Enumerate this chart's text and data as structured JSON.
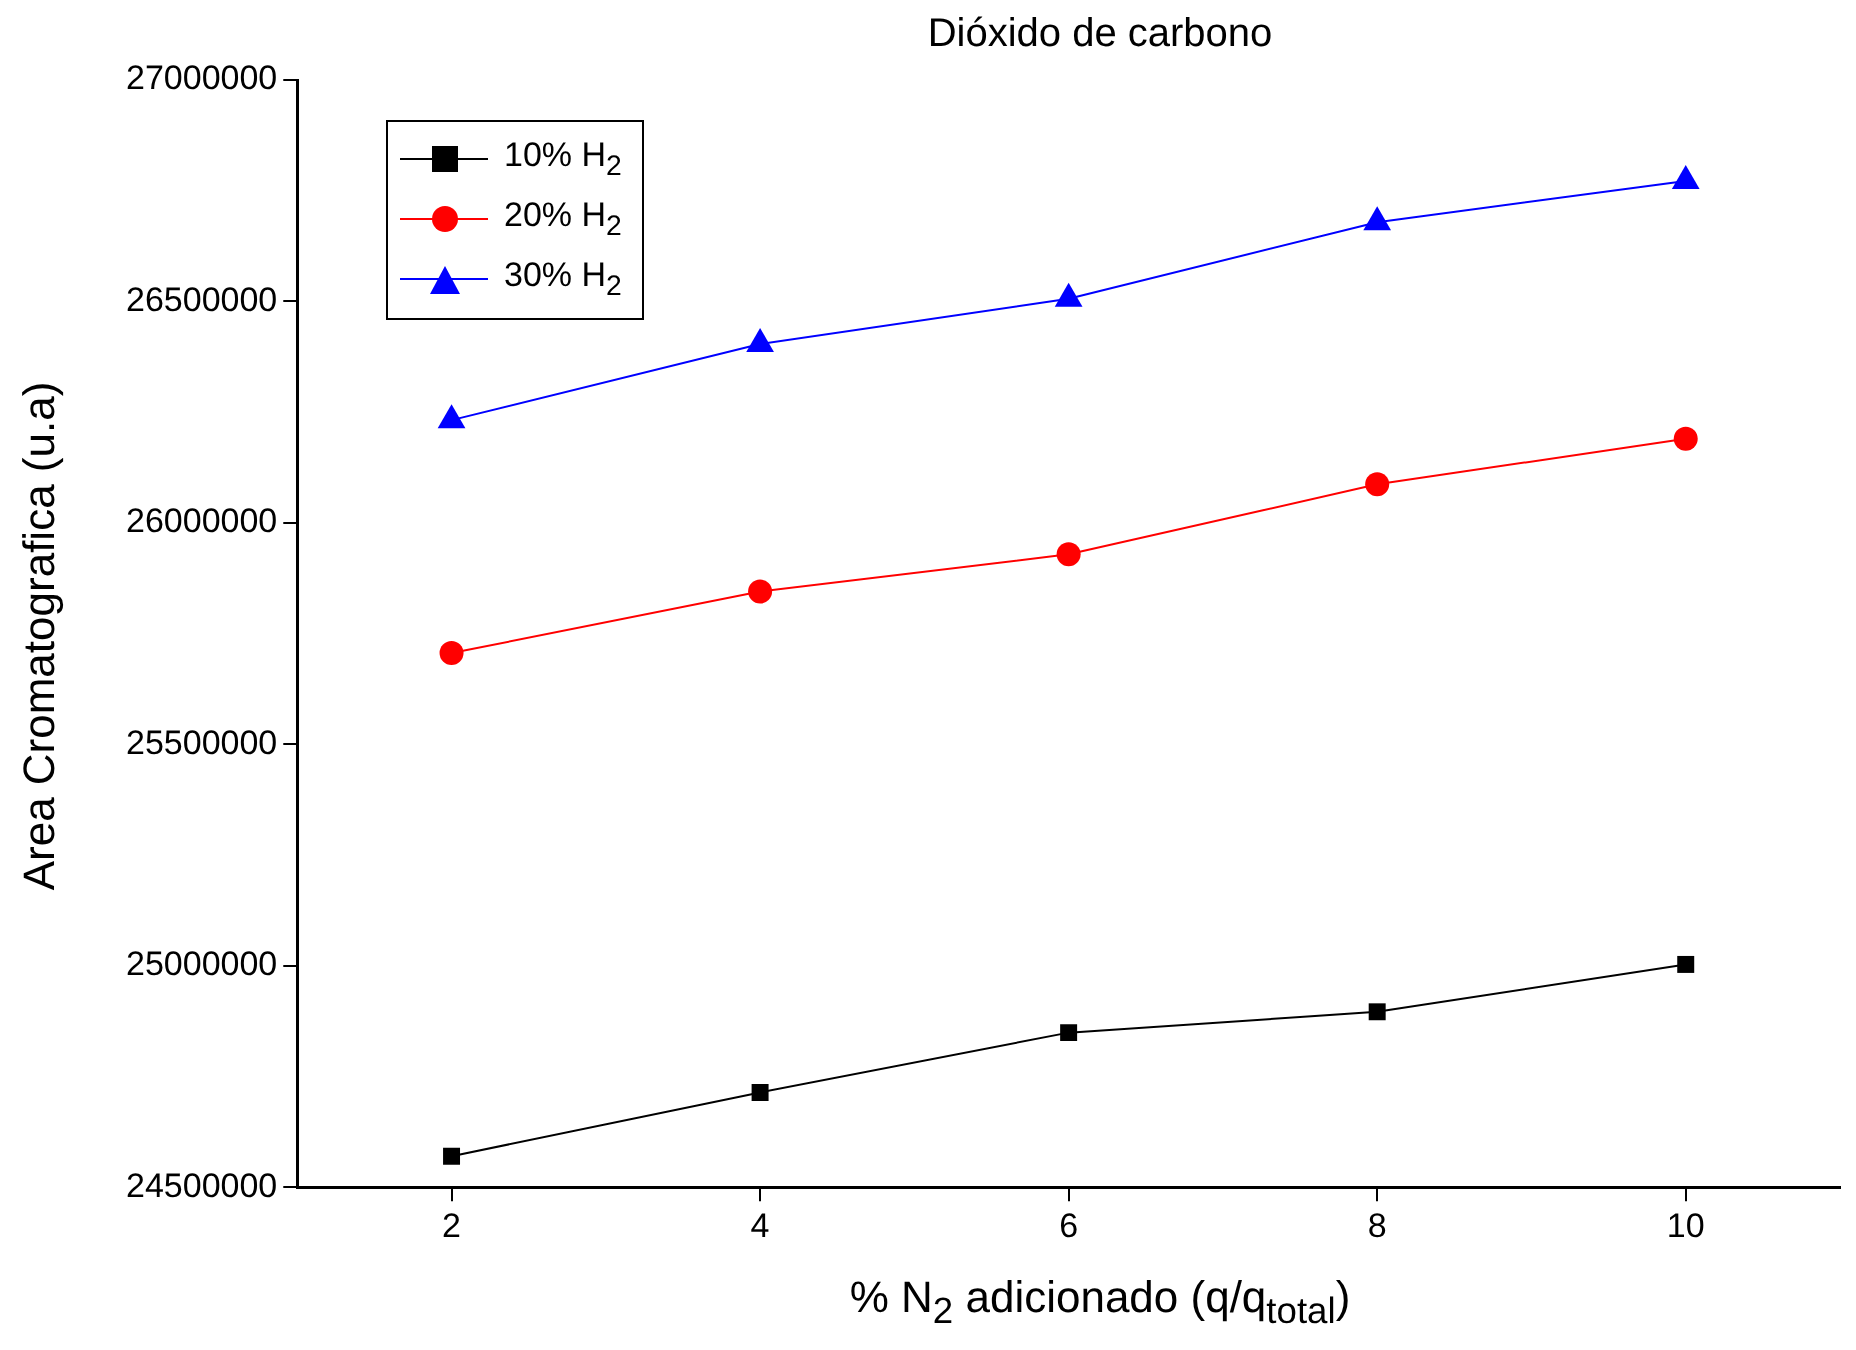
{
  "chart_data": {
    "type": "line",
    "title": "Dióxido de carbono",
    "xlabel": "% N$_{2}$ adicionado (q/q$_{total}$)",
    "ylabel": "Area Cromatografica (u.a)",
    "x": [
      2,
      4,
      6,
      8,
      10
    ],
    "series": [
      {
        "name": "10% H$_{2}$",
        "color": "#000000",
        "marker": "square",
        "values": [
          24570000,
          24714000,
          24849000,
          24896000,
          25003000
        ]
      },
      {
        "name": "20% H$_{2}$",
        "color": "#ff0000",
        "marker": "circle",
        "values": [
          25706000,
          25845000,
          25929000,
          26087000,
          26190000
        ]
      },
      {
        "name": "30% H$_{2}$",
        "color": "#0000ff",
        "marker": "triangle",
        "values": [
          26232000,
          26404000,
          26506000,
          26679000,
          26772000
        ]
      }
    ],
    "xlim": [
      1,
      11
    ],
    "xticks": [
      2,
      4,
      6,
      8,
      10
    ],
    "ylim": [
      24500000,
      27000000
    ],
    "yticks": [
      24500000,
      25000000,
      25500000,
      26000000,
      26500000,
      27000000
    ],
    "grid": false,
    "legend": "top left",
    "line_style": "solid"
  }
}
